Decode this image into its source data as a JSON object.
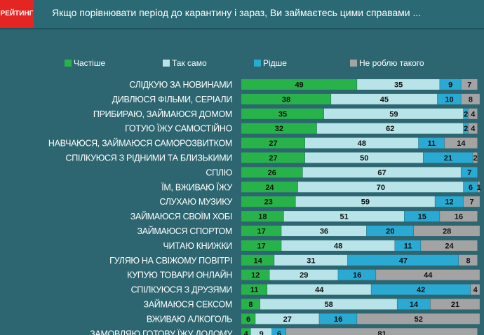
{
  "header": {
    "logo": "РЕЙТИНГ",
    "title": "Якщо порівнювати  період до карантину і зараз, Ви займаєтесь цими справами  ..."
  },
  "chart_data": {
    "type": "bar",
    "stacked": true,
    "orientation": "horizontal",
    "xlim": [
      0,
      100
    ],
    "legend_position": "top",
    "categories": [
      "СЛІДКУЮ ЗА НОВИНАМИ",
      "ДИВЛЮСЯ ФІЛЬМИ, СЕРІАЛИ",
      "ПРИБИРАЮ, ЗАЙМАЮСЯ ДОМОМ",
      "ГОТУЮ ЇЖУ САМОСТІЙНО",
      "НАВЧАЮСЯ, ЗАЙМАЮСЯ САМОРОЗВИТКОМ",
      "СПІЛКУЮСЯ З РІДНИМИ ТА БЛИЗЬКИМИ",
      "СПЛЮ",
      "ЇМ, ВЖИВАЮ ЇЖУ",
      "СЛУХАЮ МУЗИКУ",
      "ЗАЙМАЮСЯ СВОЇМ ХОБІ",
      "ЗАЙМАЮСЯ СПОРТОМ",
      "ЧИТАЮ КНИЖКИ",
      "ГУЛЯЮ НА СВІЖОМУ ПОВІТРІ",
      "КУПУЮ ТОВАРИ ОНЛАЙН",
      "СПІЛКУЮСЯ З ДРУЗЯМИ",
      "ЗАЙМАЮСЯ СЕКСОМ",
      "ВЖИВАЮ АЛКОГОЛЬ",
      "ЗАМОВЛЯЮ ГОТОВУ ЇЖУ ДОДОМУ"
    ],
    "series": [
      {
        "name": "Частіше",
        "color": "#27b34a",
        "values": [
          49,
          38,
          35,
          32,
          27,
          27,
          26,
          24,
          23,
          18,
          17,
          17,
          14,
          12,
          11,
          8,
          6,
          4
        ]
      },
      {
        "name": "Так само",
        "color": "#b8e3e8",
        "values": [
          35,
          45,
          59,
          62,
          48,
          50,
          67,
          70,
          59,
          51,
          36,
          48,
          31,
          29,
          44,
          58,
          27,
          9
        ]
      },
      {
        "name": "Рідше",
        "color": "#2aa9d2",
        "values": [
          9,
          10,
          2,
          2,
          11,
          21,
          7,
          6,
          12,
          15,
          20,
          11,
          47,
          16,
          42,
          14,
          16,
          6
        ]
      },
      {
        "name": "Не роблю такого",
        "color": "#a3a3a3",
        "values": [
          7,
          8,
          4,
          4,
          14,
          2,
          0,
          1,
          7,
          16,
          28,
          24,
          8,
          44,
          4,
          21,
          52,
          81
        ]
      }
    ]
  }
}
